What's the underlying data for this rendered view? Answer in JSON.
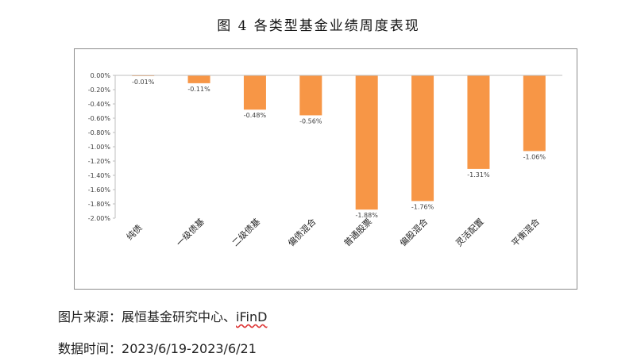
{
  "figure": {
    "title": "图 4 各类型基金业绩周度表现",
    "source_label": "图片来源：",
    "source_text": "展恒基金研究中心、",
    "source_brand": "iFinD",
    "date_label": "数据时间：",
    "date_text": "2023/6/19-2023/6/21"
  },
  "chart_data": {
    "type": "bar",
    "title": "图 4 各类型基金业绩周度表现",
    "categories": [
      "纯债",
      "一级债基",
      "二级债基",
      "偏债混合",
      "普通股票",
      "偏股混合",
      "灵活配置",
      "平衡混合"
    ],
    "values": [
      -0.01,
      -0.11,
      -0.48,
      -0.56,
      -1.88,
      -1.76,
      -1.31,
      -1.06
    ],
    "value_labels": [
      "-0.01%",
      "-0.11%",
      "-0.48%",
      "-0.56%",
      "-1.88%",
      "-1.76%",
      "-1.31%",
      "-1.06%"
    ],
    "yticks": [
      0,
      -0.2,
      -0.4,
      -0.6,
      -0.8,
      -1.0,
      -1.2,
      -1.4,
      -1.6,
      -1.8,
      -2.0
    ],
    "ytick_labels": [
      "0.00%",
      "-0.20%",
      "-0.40%",
      "-0.60%",
      "-0.80%",
      "-1.00%",
      "-1.20%",
      "-1.40%",
      "-1.60%",
      "-1.80%",
      "-2.00%"
    ],
    "ylim": [
      -2.0,
      0
    ],
    "xlabel": "",
    "ylabel": "",
    "grid": false,
    "bar_color": "#F79646"
  }
}
